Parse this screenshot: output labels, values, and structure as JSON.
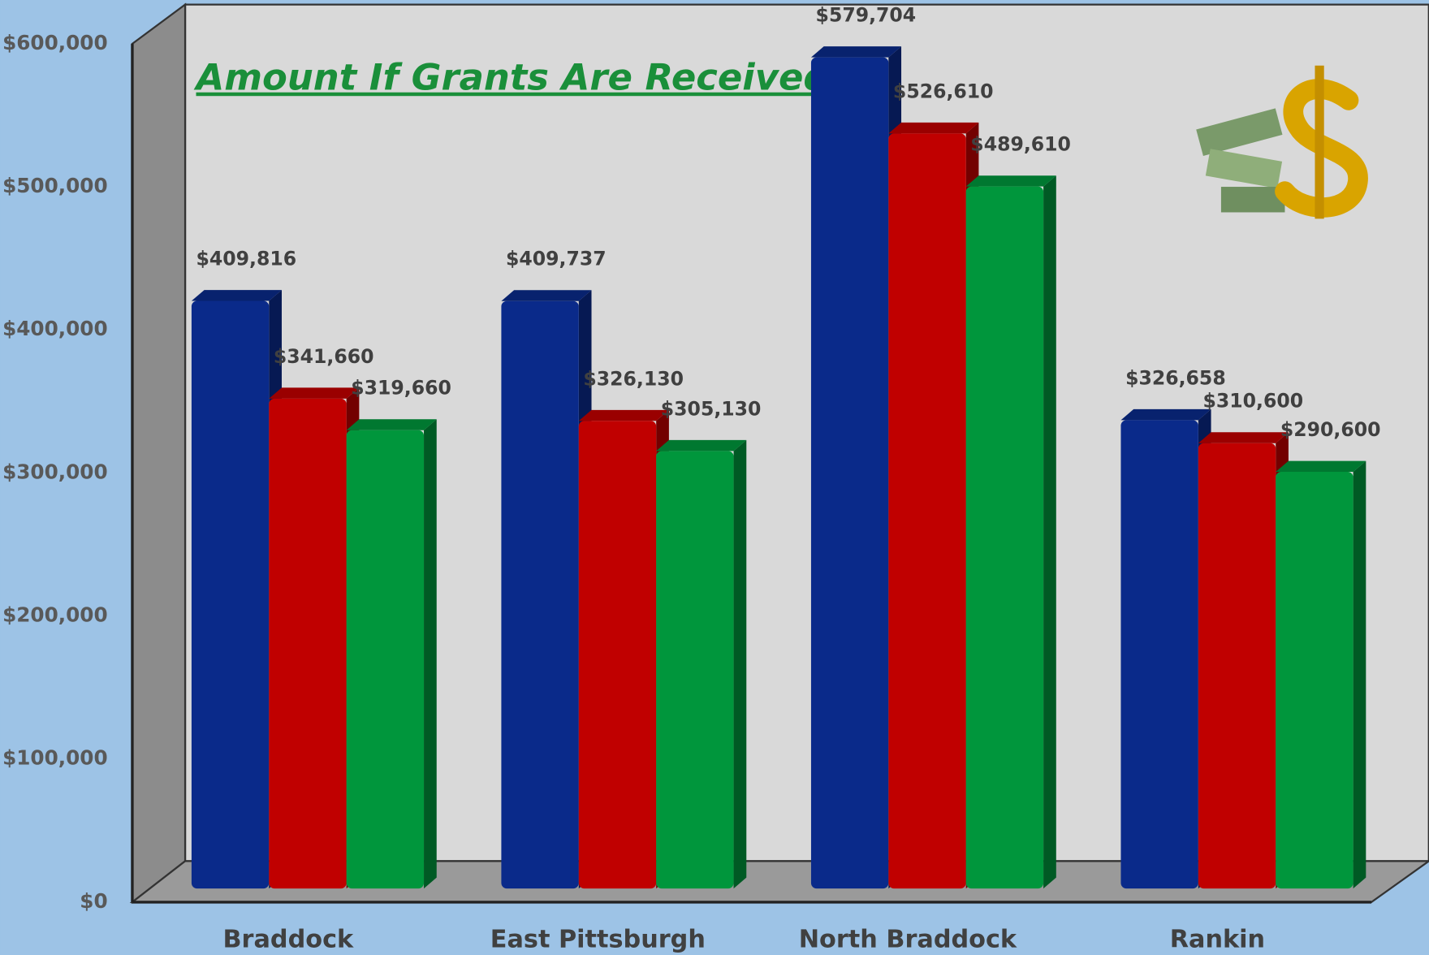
{
  "chart_data": {
    "type": "bar3d",
    "title": "Amount If Grants Are Received",
    "categories": [
      "Braddock",
      "East Pittsburgh",
      "North Braddock",
      "Rankin"
    ],
    "series": [
      {
        "color": "#0a2a8a",
        "values": [
          409816,
          409737,
          579704,
          326658
        ],
        "value_labels": [
          "$409,816",
          "$409,737",
          "$579,704",
          "$326,658"
        ]
      },
      {
        "color": "#c00000",
        "values": [
          341660,
          326130,
          526610,
          310600
        ],
        "value_labels": [
          "$341,660",
          "$326,130",
          "$526,610",
          "$310,600"
        ]
      },
      {
        "color": "#00963c",
        "values": [
          319660,
          305130,
          489610,
          290600
        ],
        "value_labels": [
          "$319,660",
          "$305,130",
          "$489,610",
          "$290,600"
        ]
      }
    ],
    "ylim": [
      0,
      600000
    ],
    "yticks": [
      {
        "value": 0,
        "label": "$0"
      },
      {
        "value": 100000,
        "label": "$100,000"
      },
      {
        "value": 200000,
        "label": "$200,000"
      },
      {
        "value": 300000,
        "label": "$300,000"
      },
      {
        "value": 400000,
        "label": "$400,000"
      },
      {
        "value": 500000,
        "label": "$500,000"
      },
      {
        "value": 600000,
        "label": "$600,000"
      }
    ]
  }
}
